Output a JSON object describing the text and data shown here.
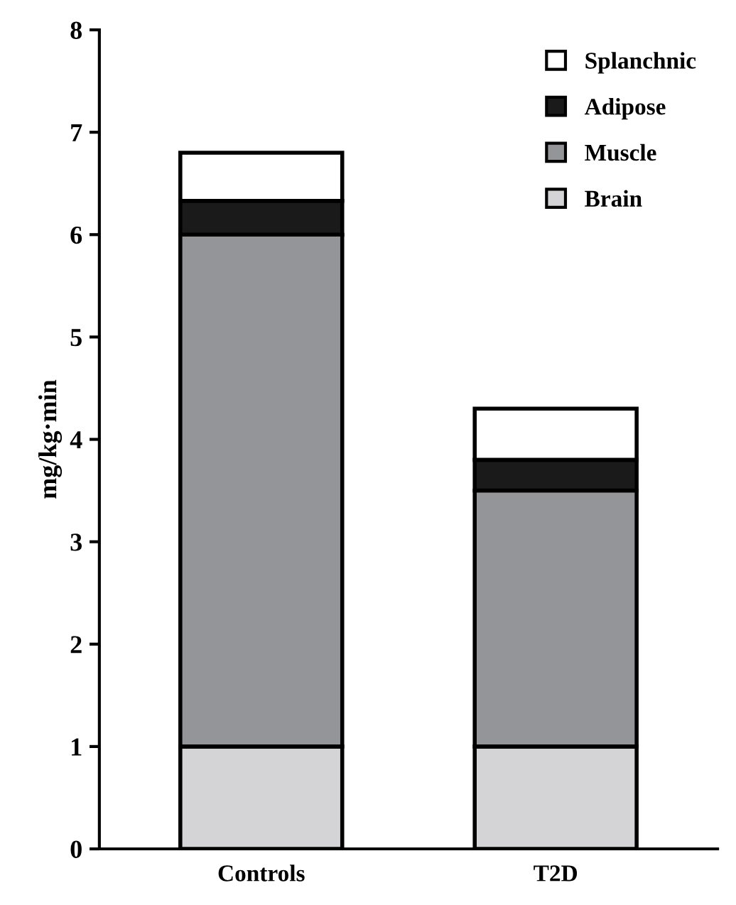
{
  "chart_data": {
    "type": "bar",
    "ylabel": "mg/kg·min",
    "categories": [
      "Controls",
      "T2D"
    ],
    "stacked": true,
    "series": [
      {
        "name": "Brain",
        "color": "#d4d4d6",
        "values": [
          1.0,
          1.0
        ]
      },
      {
        "name": "Muscle",
        "color": "#939598",
        "values": [
          5.0,
          2.5
        ]
      },
      {
        "name": "Adipose",
        "color": "#1a1a1a",
        "values": [
          0.33,
          0.3
        ]
      },
      {
        "name": "Splanchnic",
        "color": "#ffffff",
        "values": [
          0.47,
          0.5
        ]
      }
    ],
    "ylim": [
      0,
      8
    ],
    "yticks": [
      0,
      1,
      2,
      3,
      4,
      5,
      6,
      7,
      8
    ],
    "grid": false,
    "legend": "top right"
  }
}
